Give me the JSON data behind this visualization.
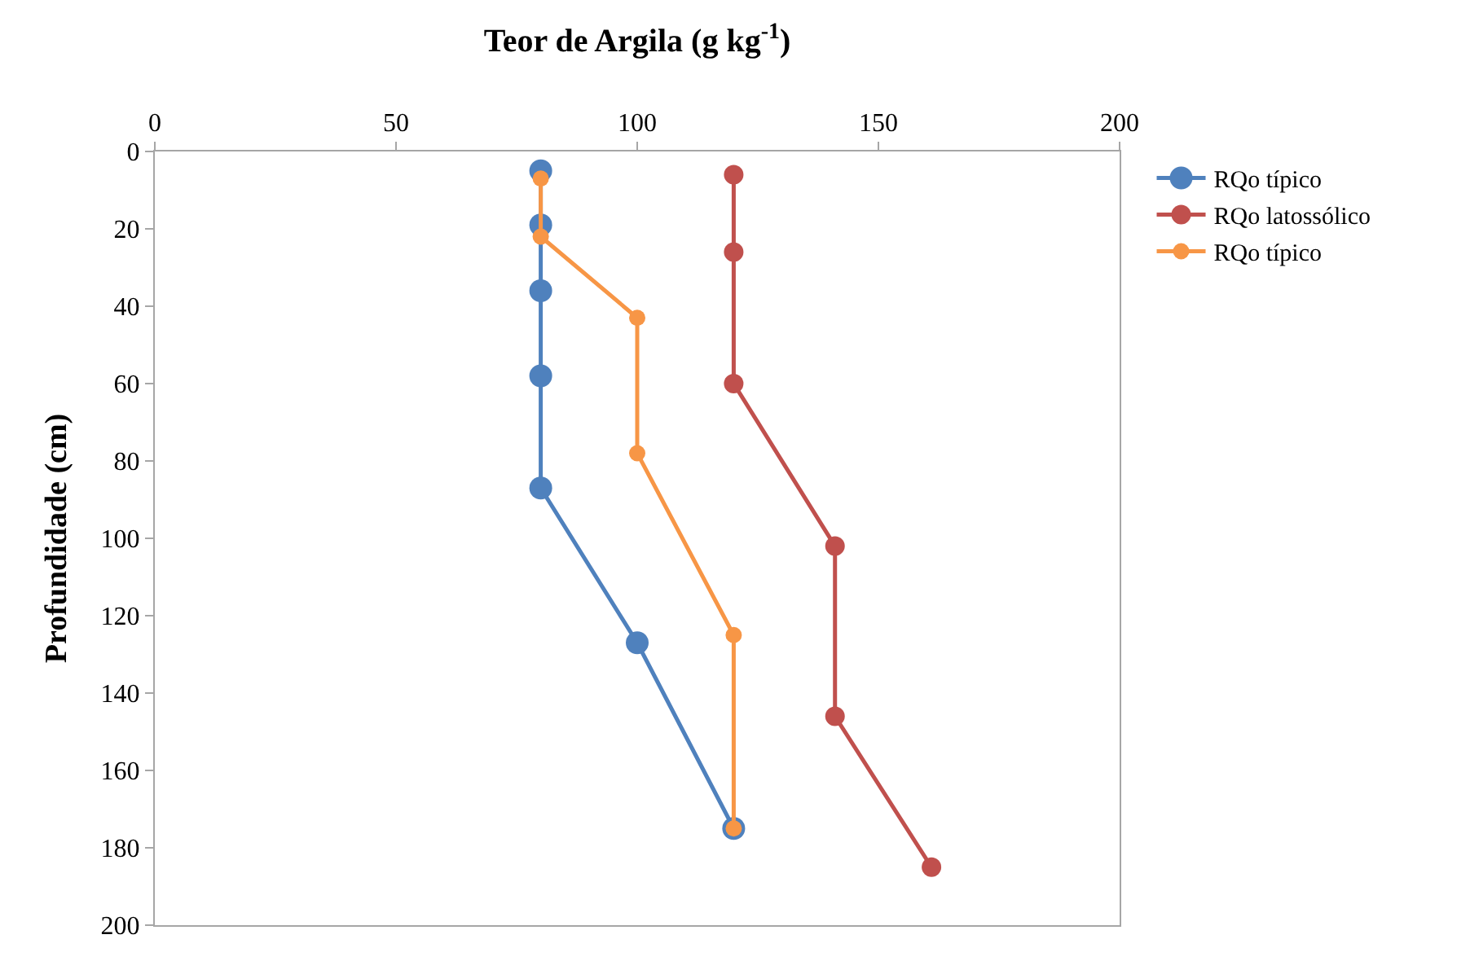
{
  "chart_data": {
    "type": "line",
    "title": "Teor de Argila (g kg$^{-1}$)",
    "ylabel": "Profundidade (cm)",
    "xlim": [
      0,
      200
    ],
    "xticks": [
      0,
      50,
      100,
      150,
      200
    ],
    "ylim": [
      200,
      0
    ],
    "yticks": [
      0,
      20,
      40,
      60,
      80,
      100,
      120,
      140,
      160,
      180,
      200
    ],
    "grid": false,
    "legend": "right",
    "marker": "circle",
    "line_style": "solid",
    "series": [
      {
        "name": "RQo típico",
        "color": "#4f81bd",
        "x": [
          80,
          80,
          80,
          80,
          80,
          100,
          120
        ],
        "values": [
          5,
          19,
          36,
          58,
          87,
          127,
          175
        ]
      },
      {
        "name": "RQo latossólico",
        "color": "#c0504d",
        "x": [
          120,
          120,
          120,
          141,
          141,
          161
        ],
        "values": [
          6,
          26,
          60,
          102,
          146,
          185
        ]
      },
      {
        "name": "RQo típico",
        "color": "#f79646",
        "x": [
          80,
          80,
          100,
          100,
          120,
          120
        ],
        "values": [
          7,
          22,
          43,
          78,
          125,
          175
        ]
      }
    ]
  }
}
